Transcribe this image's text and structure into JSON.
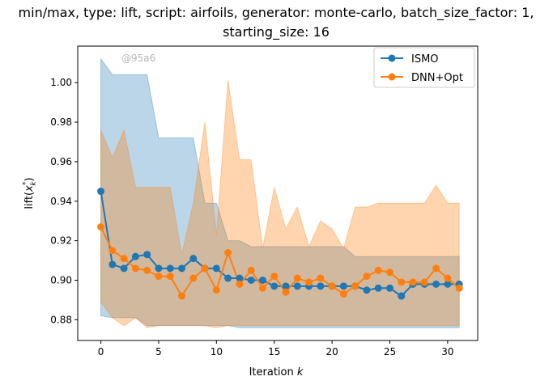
{
  "chart_data": {
    "type": "line",
    "title_line1": "min/max, type: lift, script: airfoils, generator: monte-carlo, batch_size_factor: 1,",
    "title_line2": "starting_size: 16",
    "xlabel": "Iteration k",
    "ylabel": "lift(x*k)",
    "watermark": "@95a6",
    "xlim": [
      -2,
      32.6
    ],
    "ylim": [
      0.8695,
      1.0185
    ],
    "xticks": [
      0,
      5,
      10,
      15,
      20,
      25,
      30
    ],
    "yticks": [
      0.88,
      0.9,
      0.92,
      0.94,
      0.96,
      0.98,
      1.0
    ],
    "ytick_labels": [
      "0.88",
      "0.90",
      "0.92",
      "0.94",
      "0.96",
      "0.98",
      "1.00"
    ],
    "grid": false,
    "legend_position": "top-right",
    "x": [
      0,
      1,
      2,
      3,
      4,
      5,
      6,
      7,
      8,
      9,
      10,
      11,
      12,
      13,
      14,
      15,
      16,
      17,
      18,
      19,
      20,
      21,
      22,
      23,
      24,
      25,
      26,
      27,
      28,
      29,
      30,
      31
    ],
    "series": [
      {
        "name": "ISMO",
        "color": "#1f77b4",
        "values": [
          0.945,
          0.908,
          0.906,
          0.912,
          0.913,
          0.906,
          0.906,
          0.906,
          0.911,
          0.906,
          0.906,
          0.901,
          0.901,
          0.9,
          0.9,
          0.897,
          0.897,
          0.897,
          0.897,
          0.897,
          0.897,
          0.897,
          0.897,
          0.895,
          0.896,
          0.896,
          0.892,
          0.898,
          0.898,
          0.898,
          0.898,
          0.898
        ],
        "upper": [
          1.012,
          1.004,
          1.004,
          1.004,
          1.004,
          0.972,
          0.972,
          0.972,
          0.972,
          0.939,
          0.939,
          0.92,
          0.92,
          0.917,
          0.917,
          0.917,
          0.917,
          0.917,
          0.917,
          0.917,
          0.917,
          0.917,
          0.912,
          0.912,
          0.912,
          0.912,
          0.912,
          0.912,
          0.912,
          0.912,
          0.912,
          0.912
        ],
        "lower": [
          0.882,
          0.881,
          0.881,
          0.881,
          0.877,
          0.877,
          0.877,
          0.877,
          0.877,
          0.877,
          0.877,
          0.877,
          0.876,
          0.876,
          0.876,
          0.876,
          0.876,
          0.876,
          0.876,
          0.876,
          0.876,
          0.876,
          0.876,
          0.876,
          0.876,
          0.876,
          0.876,
          0.876,
          0.876,
          0.876,
          0.876,
          0.876
        ]
      },
      {
        "name": "DNN+Opt",
        "color": "#ff7f0e",
        "values": [
          0.927,
          0.915,
          0.911,
          0.906,
          0.905,
          0.902,
          0.902,
          0.892,
          0.901,
          0.906,
          0.895,
          0.914,
          0.898,
          0.905,
          0.896,
          0.902,
          0.894,
          0.901,
          0.899,
          0.901,
          0.897,
          0.893,
          0.897,
          0.902,
          0.905,
          0.904,
          0.899,
          0.899,
          0.899,
          0.906,
          0.901,
          0.896
        ],
        "upper": [
          0.976,
          0.962,
          0.976,
          0.947,
          0.947,
          0.947,
          0.947,
          0.913,
          0.939,
          0.98,
          0.923,
          1.001,
          0.961,
          0.961,
          0.916,
          0.947,
          0.926,
          0.937,
          0.917,
          0.93,
          0.926,
          0.916,
          0.937,
          0.937,
          0.939,
          0.939,
          0.939,
          0.939,
          0.939,
          0.948,
          0.939,
          0.939
        ],
        "lower": [
          0.889,
          0.881,
          0.877,
          0.881,
          0.876,
          0.877,
          0.877,
          0.877,
          0.877,
          0.877,
          0.876,
          0.877,
          0.877,
          0.877,
          0.877,
          0.877,
          0.877,
          0.877,
          0.877,
          0.877,
          0.877,
          0.877,
          0.877,
          0.877,
          0.877,
          0.877,
          0.877,
          0.877,
          0.877,
          0.877,
          0.877,
          0.877
        ]
      }
    ]
  }
}
